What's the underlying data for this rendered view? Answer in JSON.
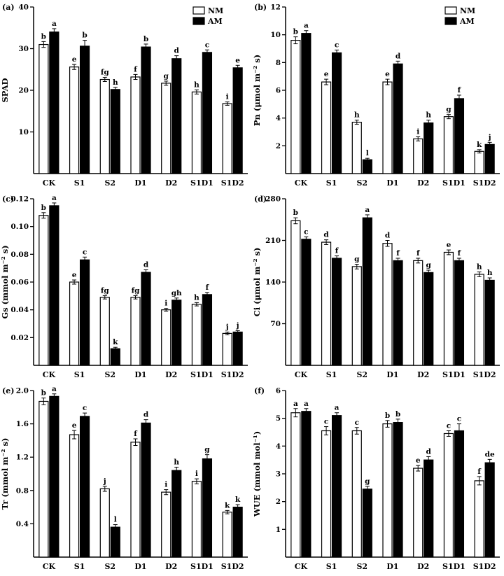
{
  "figure": {
    "description": "Six-panel bar figure comparing NM and AM treatments across water/salt stress levels",
    "colors": {
      "nm_fill": "#ffffff",
      "am_fill": "#000000",
      "axis": "#000000",
      "background": "#ffffff"
    }
  },
  "chart_data": [
    {
      "panel": "(a)",
      "type": "bar",
      "ylabel": "SPAD",
      "ylim": [
        0,
        40
      ],
      "yticks": [
        10,
        20,
        30,
        40
      ],
      "ytick_labels": [
        "10",
        "20",
        "30",
        "40"
      ],
      "categories": [
        "CK",
        "S1",
        "S2",
        "D1",
        "D2",
        "S1D1",
        "S1D2"
      ],
      "legend": true,
      "legend_position": "top-right",
      "series": [
        {
          "name": "NM",
          "fill": "#ffffff",
          "values": [
            31,
            25.6,
            22.6,
            23.2,
            21.7,
            19.6,
            16.8
          ],
          "err": [
            0.7,
            0.6,
            0.5,
            0.6,
            0.5,
            0.5,
            0.4
          ],
          "letters": [
            "b",
            "e",
            "fg",
            "f",
            "g",
            "h",
            "i"
          ]
        },
        {
          "name": "AM",
          "fill": "#000000",
          "values": [
            34,
            30.6,
            20.2,
            30.4,
            27.6,
            29.1,
            25.4
          ],
          "err": [
            0.8,
            1.4,
            0.5,
            0.7,
            0.7,
            0.6,
            0.6
          ],
          "letters": [
            "a",
            "b",
            "h",
            "b",
            "d",
            "c",
            "e"
          ]
        }
      ]
    },
    {
      "panel": "(b)",
      "type": "bar",
      "ylabel": "Pn (μmol m⁻² s)",
      "ylim": [
        0,
        12
      ],
      "yticks": [
        2,
        4,
        6,
        8,
        10,
        12
      ],
      "ytick_labels": [
        "2",
        "4",
        "6",
        "8",
        "10",
        "12"
      ],
      "categories": [
        "CK",
        "S1",
        "S2",
        "D1",
        "D2",
        "S1D1",
        "S1D2"
      ],
      "legend": true,
      "legend_position": "top-right",
      "series": [
        {
          "name": "NM",
          "fill": "#ffffff",
          "values": [
            9.6,
            6.6,
            3.7,
            6.6,
            2.5,
            4.1,
            1.6
          ],
          "err": [
            0.25,
            0.2,
            0.15,
            0.2,
            0.15,
            0.15,
            0.12
          ],
          "letters": [
            "b",
            "e",
            "h",
            "e",
            "i",
            "g",
            "k"
          ]
        },
        {
          "name": "AM",
          "fill": "#000000",
          "values": [
            10.1,
            8.7,
            1.0,
            7.9,
            3.65,
            5.4,
            2.1
          ],
          "err": [
            0.2,
            0.2,
            0.1,
            0.2,
            0.2,
            0.25,
            0.15
          ],
          "letters": [
            "a",
            "c",
            "l",
            "d",
            "h",
            "f",
            "j"
          ]
        }
      ]
    },
    {
      "panel": "(c)",
      "type": "bar",
      "ylabel": "Gs (mmol m⁻² s)",
      "ylim": [
        0,
        0.12
      ],
      "yticks": [
        0.02,
        0.04,
        0.06,
        0.08,
        0.1,
        0.12
      ],
      "ytick_labels": [
        "0.02",
        "0.04",
        "0.06",
        "0.08",
        "0.10",
        "0.12"
      ],
      "categories": [
        "CK",
        "S1",
        "S2",
        "D1",
        "D2",
        "S1D1",
        "S1D2"
      ],
      "legend": false,
      "legend_position": "",
      "series": [
        {
          "name": "NM",
          "fill": "#ffffff",
          "values": [
            0.108,
            0.06,
            0.049,
            0.049,
            0.04,
            0.044,
            0.023
          ],
          "err": [
            0.002,
            0.0015,
            0.0012,
            0.0012,
            0.001,
            0.0012,
            0.001
          ],
          "letters": [
            "b",
            "e",
            "fg",
            "fg",
            "i",
            "h",
            "j"
          ]
        },
        {
          "name": "AM",
          "fill": "#000000",
          "values": [
            0.115,
            0.076,
            0.012,
            0.067,
            0.047,
            0.051,
            0.024
          ],
          "err": [
            0.002,
            0.002,
            0.001,
            0.0018,
            0.0015,
            0.0015,
            0.001
          ],
          "letters": [
            "a",
            "c",
            "k",
            "d",
            "gh",
            "f",
            "j"
          ]
        }
      ]
    },
    {
      "panel": "(d)",
      "type": "bar",
      "ylabel": "Ci (μmol m⁻² s)",
      "ylim": [
        0,
        280
      ],
      "yticks": [
        70,
        140,
        210,
        280
      ],
      "ytick_labels": [
        "70",
        "140",
        "210",
        "280"
      ],
      "categories": [
        "CK",
        "S1",
        "S2",
        "D1",
        "D2",
        "S1D1",
        "S1D2"
      ],
      "legend": false,
      "legend_position": "",
      "series": [
        {
          "name": "NM",
          "fill": "#ffffff",
          "values": [
            243,
            207,
            166,
            205,
            176,
            190,
            153
          ],
          "err": [
            5,
            4,
            4,
            5,
            4,
            4,
            4
          ],
          "letters": [
            "b",
            "d",
            "g",
            "d",
            "f",
            "e",
            "h"
          ]
        },
        {
          "name": "AM",
          "fill": "#000000",
          "values": [
            212,
            180,
            248,
            176,
            156,
            176,
            143
          ],
          "err": [
            4,
            4,
            5,
            4,
            4,
            4,
            4
          ],
          "letters": [
            "c",
            "f",
            "a",
            "f",
            "g",
            "f",
            "h"
          ]
        }
      ]
    },
    {
      "panel": "(e)",
      "type": "bar",
      "ylabel": "Tr (mmol m⁻² s)",
      "ylim": [
        0,
        2.0
      ],
      "yticks": [
        0.4,
        0.8,
        1.2,
        1.6,
        2.0
      ],
      "ytick_labels": [
        "0.4",
        "0.8",
        "1.2",
        "1.6",
        "2.0"
      ],
      "categories": [
        "CK",
        "S1",
        "S2",
        "D1",
        "D2",
        "S1D1",
        "S1D2"
      ],
      "legend": false,
      "legend_position": "",
      "series": [
        {
          "name": "NM",
          "fill": "#ffffff",
          "values": [
            1.87,
            1.47,
            0.82,
            1.38,
            0.78,
            0.91,
            0.54
          ],
          "err": [
            0.04,
            0.05,
            0.03,
            0.04,
            0.03,
            0.03,
            0.02
          ],
          "letters": [
            "b",
            "e",
            "j",
            "f",
            "i",
            "i",
            "k"
          ]
        },
        {
          "name": "AM",
          "fill": "#000000",
          "values": [
            1.93,
            1.69,
            0.36,
            1.61,
            1.04,
            1.18,
            0.6
          ],
          "err": [
            0.03,
            0.04,
            0.03,
            0.04,
            0.04,
            0.05,
            0.03
          ],
          "letters": [
            "a",
            "c",
            "l",
            "d",
            "h",
            "g",
            "k"
          ]
        }
      ]
    },
    {
      "panel": "(f)",
      "type": "bar",
      "ylabel": "WUE (mmol mol⁻¹)",
      "ylim": [
        0,
        6
      ],
      "yticks": [
        1,
        2,
        3,
        4,
        5,
        6
      ],
      "ytick_labels": [
        "1",
        "2",
        "3",
        "4",
        "5",
        "6"
      ],
      "categories": [
        "CK",
        "S1",
        "S2",
        "D1",
        "D2",
        "S1D1",
        "S1D2"
      ],
      "legend": false,
      "legend_position": "",
      "series": [
        {
          "name": "NM",
          "fill": "#ffffff",
          "values": [
            5.2,
            4.55,
            4.55,
            4.8,
            3.2,
            4.45,
            2.75
          ],
          "err": [
            0.15,
            0.15,
            0.12,
            0.12,
            0.1,
            0.1,
            0.15
          ],
          "letters": [
            "a",
            "c",
            "c",
            "b",
            "e",
            "c",
            "f"
          ]
        },
        {
          "name": "AM",
          "fill": "#000000",
          "values": [
            5.25,
            5.1,
            2.45,
            4.85,
            3.5,
            4.55,
            3.4
          ],
          "err": [
            0.1,
            0.1,
            0.1,
            0.12,
            0.12,
            0.25,
            0.12
          ],
          "letters": [
            "a",
            "a",
            "g",
            "b",
            "d",
            "c",
            "de"
          ]
        }
      ]
    }
  ]
}
